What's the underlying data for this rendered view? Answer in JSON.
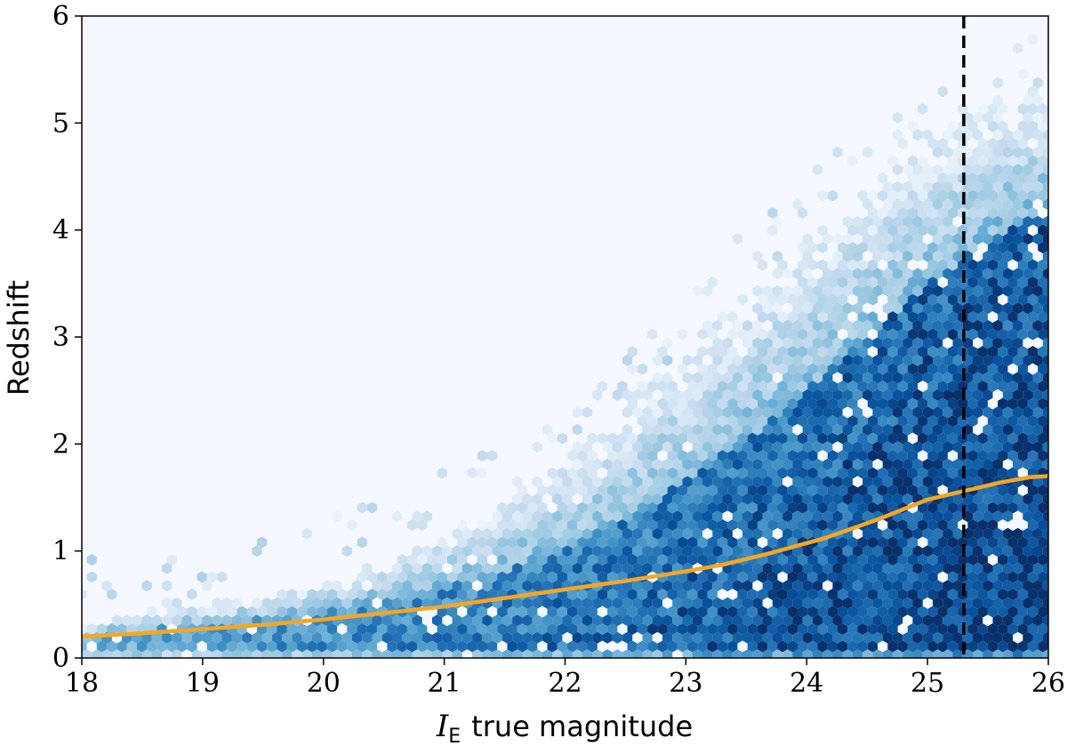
{
  "chart_data": {
    "type": "heatmap",
    "subtype": "hexbin",
    "colormap": "Blues",
    "xlabel": {
      "symbol": "I",
      "subscript": "E",
      "text": "true magnitude"
    },
    "ylabel": "Redshift",
    "xlim": [
      18,
      26
    ],
    "ylim": [
      0,
      6
    ],
    "xticks": [
      18,
      19,
      20,
      21,
      22,
      23,
      24,
      25,
      26
    ],
    "yticks": [
      0,
      1,
      2,
      3,
      4,
      5,
      6
    ],
    "grid": false,
    "legend": false,
    "series": [
      {
        "type": "line",
        "color": "#f5a623",
        "x": [
          18.0,
          18.5,
          19.0,
          19.5,
          20.0,
          20.5,
          21.0,
          21.5,
          22.0,
          22.5,
          23.0,
          23.3,
          23.7,
          24.15,
          24.6,
          25.0,
          25.3,
          25.6,
          25.85,
          26.0
        ],
        "y": [
          0.2,
          0.23,
          0.27,
          0.31,
          0.36,
          0.42,
          0.48,
          0.56,
          0.64,
          0.72,
          0.81,
          0.87,
          0.98,
          1.12,
          1.3,
          1.48,
          1.56,
          1.64,
          1.69,
          1.7
        ]
      }
    ],
    "reference_lines": [
      {
        "orientation": "vertical",
        "x": 25.3,
        "style": "dashed",
        "color": "#000000"
      }
    ],
    "density_envelope": {
      "x": [
        18.0,
        18.5,
        19.0,
        19.5,
        20.0,
        20.5,
        21.0,
        21.5,
        22.0,
        22.5,
        23.0,
        23.5,
        24.0,
        24.5,
        25.0,
        25.5,
        26.0
      ],
      "upper_z": [
        0.3,
        0.42,
        0.5,
        0.6,
        0.72,
        0.9,
        1.15,
        1.5,
        1.9,
        2.4,
        2.9,
        3.4,
        3.9,
        4.4,
        4.9,
        5.2,
        5.4
      ],
      "core_z": [
        0.22,
        0.26,
        0.3,
        0.36,
        0.42,
        0.52,
        0.65,
        0.82,
        1.02,
        1.3,
        1.65,
        2.05,
        2.5,
        3.0,
        3.5,
        3.9,
        4.2
      ],
      "background_color": "#f5f9ff",
      "peak_color": "#08306b"
    }
  }
}
